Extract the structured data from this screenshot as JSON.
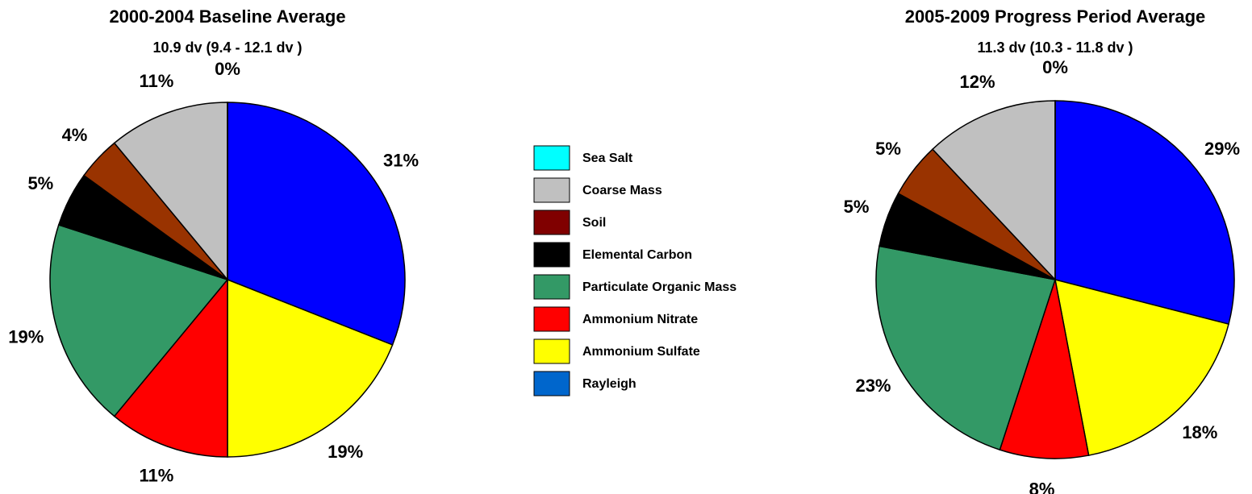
{
  "chart_data": [
    {
      "type": "pie",
      "title": "2000-2004 Baseline Average",
      "subtitle": "10.9 dv (9.4 - 12.1 dv )",
      "categories": [
        "Rayleigh",
        "Ammonium Sulfate",
        "Ammonium Nitrate",
        "Particulate Organic Mass",
        "Elemental Carbon",
        "Soil",
        "Coarse Mass",
        "Sea Salt"
      ],
      "values": [
        31,
        19,
        11,
        19,
        5,
        4,
        11,
        0
      ],
      "value_labels": [
        "31%",
        "19%",
        "11%",
        "19%",
        "5%",
        "4%",
        "11%",
        "0%"
      ],
      "colors": [
        "#0000ff",
        "#ffff00",
        "#ff0000",
        "#339966",
        "#000000",
        "#993300",
        "#c0c0c0",
        "#00ffff"
      ]
    },
    {
      "type": "pie",
      "title": "2005-2009 Progress Period Average",
      "subtitle": "11.3 dv (10.3 - 11.8 dv )",
      "categories": [
        "Rayleigh",
        "Ammonium Sulfate",
        "Ammonium Nitrate",
        "Particulate Organic Mass",
        "Elemental Carbon",
        "Soil",
        "Coarse Mass",
        "Sea Salt"
      ],
      "values": [
        29,
        18,
        8,
        23,
        5,
        5,
        12,
        0
      ],
      "value_labels": [
        "29%",
        "18%",
        "8%",
        "23%",
        "5%",
        "5%",
        "12%",
        "0%"
      ],
      "colors": [
        "#0000ff",
        "#ffff00",
        "#ff0000",
        "#339966",
        "#000000",
        "#993300",
        "#c0c0c0",
        "#00ffff"
      ]
    }
  ],
  "legend": {
    "labels": [
      "Sea Salt",
      "Coarse Mass",
      "Soil",
      "Elemental Carbon",
      "Particulate Organic Mass",
      "Ammonium Nitrate",
      "Ammonium Sulfate",
      "Rayleigh"
    ],
    "colors": [
      "#00ffff",
      "#c0c0c0",
      "#800000",
      "#000000",
      "#339966",
      "#ff0000",
      "#ffff00",
      "#0066cc"
    ]
  }
}
